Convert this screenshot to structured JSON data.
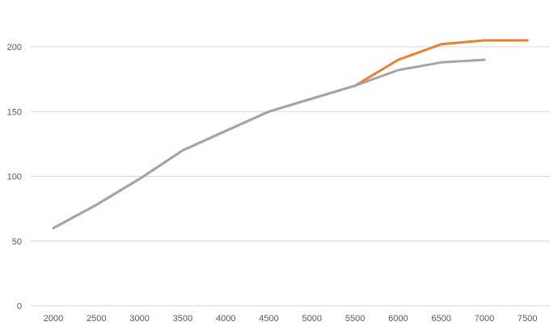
{
  "chart_data": {
    "type": "line",
    "title": "",
    "xlabel": "",
    "ylabel": "",
    "categories": [
      "2000",
      "2500",
      "3000",
      "3500",
      "4000",
      "4500",
      "5000",
      "5500",
      "6000",
      "6500",
      "7000",
      "7500"
    ],
    "ylim": [
      0,
      200
    ],
    "yticks": [
      0,
      50,
      100,
      150,
      200
    ],
    "grid": true,
    "series": [
      {
        "color": "#ED7D31",
        "values": [
          60,
          78,
          98,
          120,
          135,
          150,
          160,
          170,
          190,
          202,
          205,
          205
        ]
      },
      {
        "color": "#A5A5A5",
        "values": [
          60,
          78,
          98,
          120,
          135,
          150,
          160,
          170,
          182,
          188,
          190,
          null
        ]
      }
    ]
  }
}
